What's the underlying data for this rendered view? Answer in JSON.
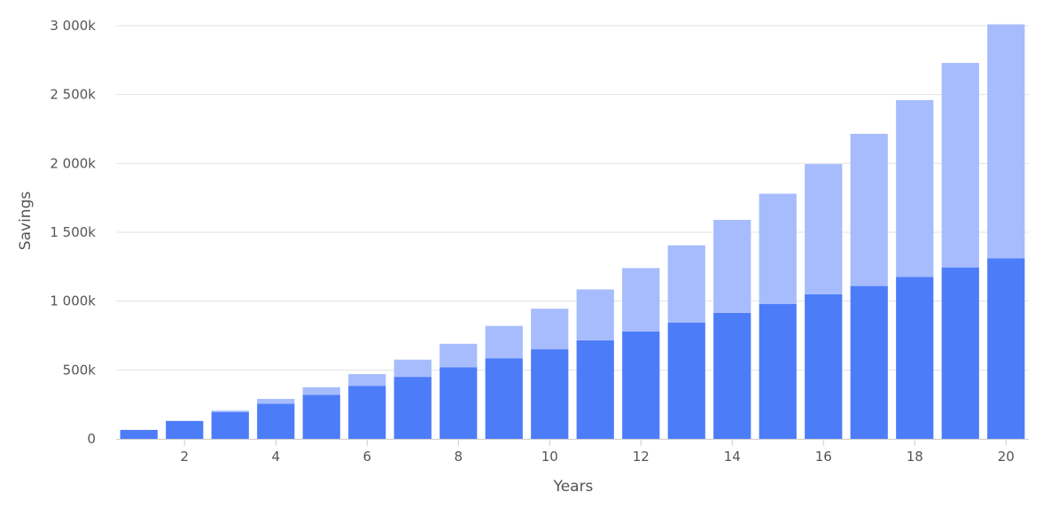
{
  "chart_data": {
    "type": "bar",
    "stacked": true,
    "title": "",
    "xlabel": "Years",
    "ylabel": "Savings",
    "x": [
      1,
      2,
      3,
      4,
      5,
      6,
      7,
      8,
      9,
      10,
      11,
      12,
      13,
      14,
      15,
      16,
      17,
      18,
      19,
      20
    ],
    "x_tick_labels": [
      "2",
      "4",
      "6",
      "8",
      "10",
      "12",
      "14",
      "16",
      "18",
      "20"
    ],
    "x_tick_values": [
      2,
      4,
      6,
      8,
      10,
      12,
      14,
      16,
      18,
      20
    ],
    "y_tick_labels": [
      "0",
      "500k",
      "1 000k",
      "1 500k",
      "2 000k",
      "2 500k",
      "3 000k"
    ],
    "y_tick_values": [
      0,
      500000,
      1000000,
      1500000,
      2000000,
      2500000,
      3000000
    ],
    "ylim": [
      0,
      3000000
    ],
    "grid": true,
    "legend": "none",
    "series": [
      {
        "color": "#4d7cf9",
        "values": [
          65000,
          130000,
          195000,
          255000,
          320000,
          385000,
          450000,
          520000,
          585000,
          650000,
          715000,
          780000,
          845000,
          915000,
          980000,
          1050000,
          1110000,
          1175000,
          1245000,
          1310000
        ]
      },
      {
        "color": "#a6bcfc",
        "values": [
          0,
          0,
          10000,
          35000,
          55000,
          85000,
          125000,
          170000,
          235000,
          295000,
          370000,
          460000,
          560000,
          675000,
          800000,
          945000,
          1105000,
          1285000,
          1485000,
          1700000
        ]
      }
    ]
  }
}
